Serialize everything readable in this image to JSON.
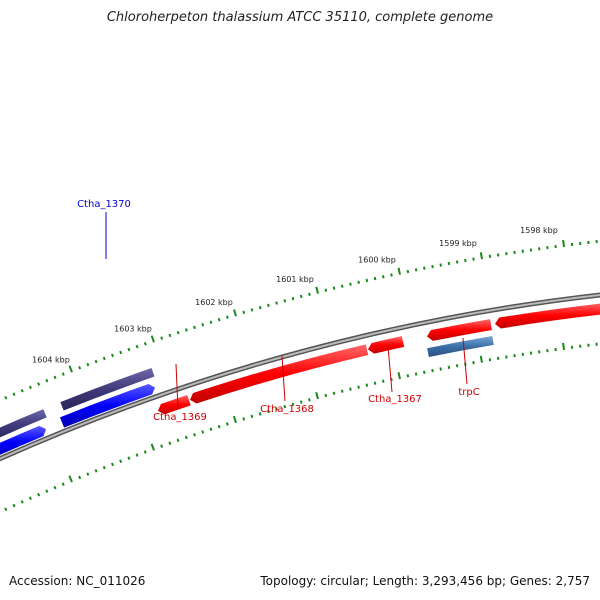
{
  "title": "Chloroherpeton thalassium ATCC 35110, complete genome",
  "footer": {
    "accession": "Accession: NC_011026",
    "summary": "Topology: circular; Length: 3,293,456 bp; Genes: 2,757"
  },
  "scale_labels": [
    "1604 kbp",
    "1603 kbp",
    "1602 kbp",
    "1601 kbp",
    "1600 kbp",
    "1599 kbp",
    "1598 kbp"
  ],
  "gene_labels": [
    {
      "name": "Ctha_1370",
      "strand": "forward"
    },
    {
      "name": "Ctha_1369",
      "strand": "reverse"
    },
    {
      "name": "Ctha_1368",
      "strand": "reverse"
    },
    {
      "name": "Ctha_1367",
      "strand": "reverse"
    },
    {
      "name": "trpC",
      "strand": "reverse"
    }
  ],
  "colors": {
    "forward_cds": "#0000ff",
    "forward_gene": "#3f3a7a",
    "reverse_cds": "#ff0000",
    "reverse_gene": "#3a6fa8",
    "backbone": "#777777",
    "ticks": "#1a8a1a",
    "forward_label": "#0000cc",
    "reverse_label": "#cc0000"
  }
}
